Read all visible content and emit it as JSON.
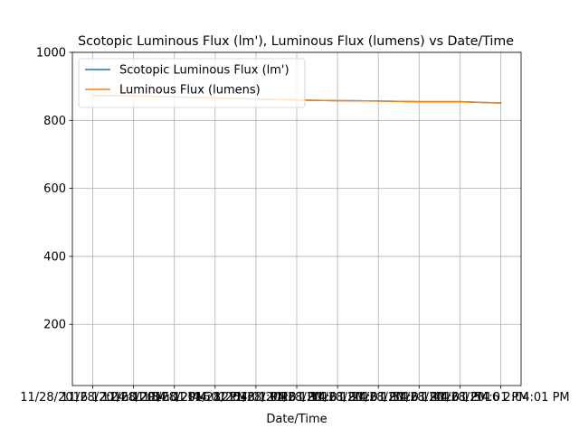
{
  "chart_data": {
    "type": "line",
    "title": "Scotopic Luminous Flux (lm'), Luminous Flux (lumens) vs Date/Time",
    "xlabel": "Date/Time",
    "ylabel": "",
    "categories": [
      "11/28/2016 12:24:01 PM",
      "11/28/2016 12:34:01 PM",
      "11/28/2016 12:44:01 PM",
      "11/28/2016 12:54:01 PM",
      "11/28/2016 1:04:01 PM",
      "11/28/2016 1:14:01 PM",
      "11/28/2016 1:24:01 PM",
      "11/28/2016 1:34:01 PM",
      "11/28/2016 1:44:01 PM",
      "11/28/2016 1:54:01 PM",
      "11/28/2016 2:04:01 PM"
    ],
    "series": [
      {
        "name": "Scotopic Luminous Flux (lm')",
        "color": "#1f77b4",
        "values": [
          873,
          872,
          869,
          866,
          863,
          860,
          858,
          857,
          855,
          855,
          851
        ]
      },
      {
        "name": "Luminous Flux (lumens)",
        "color": "#ff7f0e",
        "values": [
          873,
          872,
          869,
          866,
          863,
          860,
          858,
          857,
          855,
          855,
          851
        ]
      }
    ],
    "yticks": [
      200,
      400,
      600,
      800,
      1000
    ],
    "ylim": [
      20,
      1000
    ],
    "grid": true,
    "legend_position": "top-left"
  }
}
